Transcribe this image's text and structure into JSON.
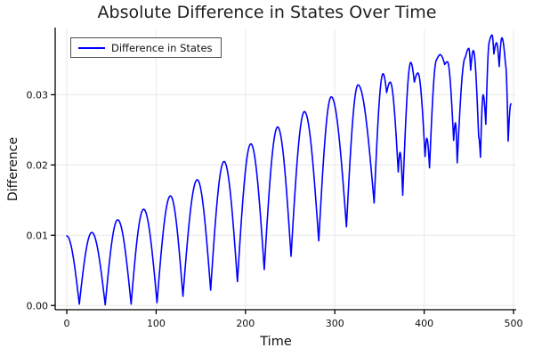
{
  "chart_data": {
    "type": "line",
    "title": "Absolute Difference in States Over Time",
    "xlabel": "Time",
    "ylabel": "Difference",
    "xlim": [
      -13,
      503
    ],
    "ylim": [
      -0.0006,
      0.0393
    ],
    "x_ticks": [
      0,
      100,
      200,
      300,
      400,
      500
    ],
    "x_tick_labels": [
      "0",
      "100",
      "200",
      "300",
      "400",
      "500"
    ],
    "y_ticks": [
      0.0,
      0.01,
      0.02,
      0.03
    ],
    "y_tick_labels": [
      "0.00",
      "0.01",
      "0.02",
      "0.03"
    ],
    "grid": true,
    "legend_position": "top-left",
    "interpolation": "half-sine-between-extrema",
    "series": [
      {
        "name": "Difference in States",
        "color": "#0000ff",
        "points": [
          [
            0,
            0.0099
          ],
          [
            14,
            0.0002
          ],
          [
            28,
            0.0104
          ],
          [
            43,
            0.0001
          ],
          [
            57,
            0.0122
          ],
          [
            72,
            0.0002
          ],
          [
            86,
            0.0137
          ],
          [
            101,
            0.0004
          ],
          [
            116,
            0.0156
          ],
          [
            130,
            0.0013
          ],
          [
            146,
            0.0179
          ],
          [
            161,
            0.0022
          ],
          [
            176,
            0.0205
          ],
          [
            191,
            0.0034
          ],
          [
            206,
            0.023
          ],
          [
            221,
            0.0051
          ],
          [
            236,
            0.0254
          ],
          [
            251,
            0.007
          ],
          [
            266,
            0.0276
          ],
          [
            282,
            0.0092
          ],
          [
            296,
            0.0297
          ],
          [
            313,
            0.0112
          ],
          [
            326,
            0.0314
          ],
          [
            344,
            0.0146
          ],
          [
            354,
            0.033
          ],
          [
            358,
            0.0303
          ],
          [
            362,
            0.0318
          ],
          [
            371,
            0.019
          ],
          [
            373,
            0.0218
          ],
          [
            376,
            0.0157
          ],
          [
            385,
            0.0346
          ],
          [
            389,
            0.0318
          ],
          [
            393,
            0.0331
          ],
          [
            401,
            0.0212
          ],
          [
            403,
            0.0238
          ],
          [
            406,
            0.0196
          ],
          [
            414,
            0.035
          ],
          [
            418,
            0.0357
          ],
          [
            423,
            0.0343
          ],
          [
            426,
            0.0347
          ],
          [
            433,
            0.0235
          ],
          [
            435,
            0.026
          ],
          [
            437,
            0.0203
          ],
          [
            446,
            0.0353
          ],
          [
            450,
            0.0366
          ],
          [
            452,
            0.0335
          ],
          [
            455,
            0.0363
          ],
          [
            461,
            0.024
          ],
          [
            463,
            0.0211
          ],
          [
            466,
            0.03
          ],
          [
            469,
            0.0258
          ],
          [
            473,
            0.0376
          ],
          [
            476,
            0.0385
          ],
          [
            478,
            0.0358
          ],
          [
            481,
            0.0374
          ],
          [
            484,
            0.034
          ],
          [
            487,
            0.0381
          ],
          [
            491,
            0.0344
          ],
          [
            494,
            0.0234
          ],
          [
            497,
            0.0287
          ]
        ]
      }
    ],
    "colors": {
      "line": "#0000ff",
      "grid": "#e8e8e8",
      "axis": "#000000",
      "title": "#1f1f1f",
      "legend_border": "#4d4d4d",
      "background": "#ffffff"
    }
  }
}
